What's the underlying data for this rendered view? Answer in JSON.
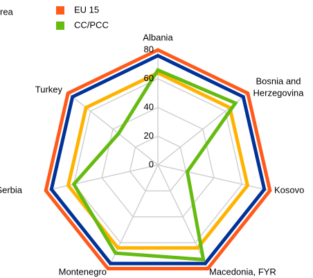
{
  "chart_data": {
    "type": "radar",
    "legend_fragment": "rea",
    "categories": [
      "Albania",
      [
        "Bosnia and",
        "Herzegovina"
      ],
      "Kosovo",
      "Macedonia, FYR",
      "Montenegro",
      "Serbia",
      "Turkey"
    ],
    "series": [
      {
        "name": "EU 15",
        "color": "#ff5a1a",
        "values": [
          80,
          80,
          80,
          80,
          80,
          80,
          80
        ]
      },
      {
        "color": "#003399",
        "values": [
          76,
          76,
          76,
          76,
          76,
          76,
          76
        ]
      },
      {
        "color": "#ffb300",
        "values": [
          64,
          64,
          64,
          64,
          64,
          64,
          64
        ]
      },
      {
        "name": "CC/PCC",
        "color": "#66bb11",
        "values": [
          66,
          69,
          21,
          73,
          68,
          60,
          35
        ]
      }
    ],
    "ylim": [
      0,
      80
    ],
    "yticks": [
      0,
      20,
      40,
      60,
      80
    ],
    "grid": true
  }
}
